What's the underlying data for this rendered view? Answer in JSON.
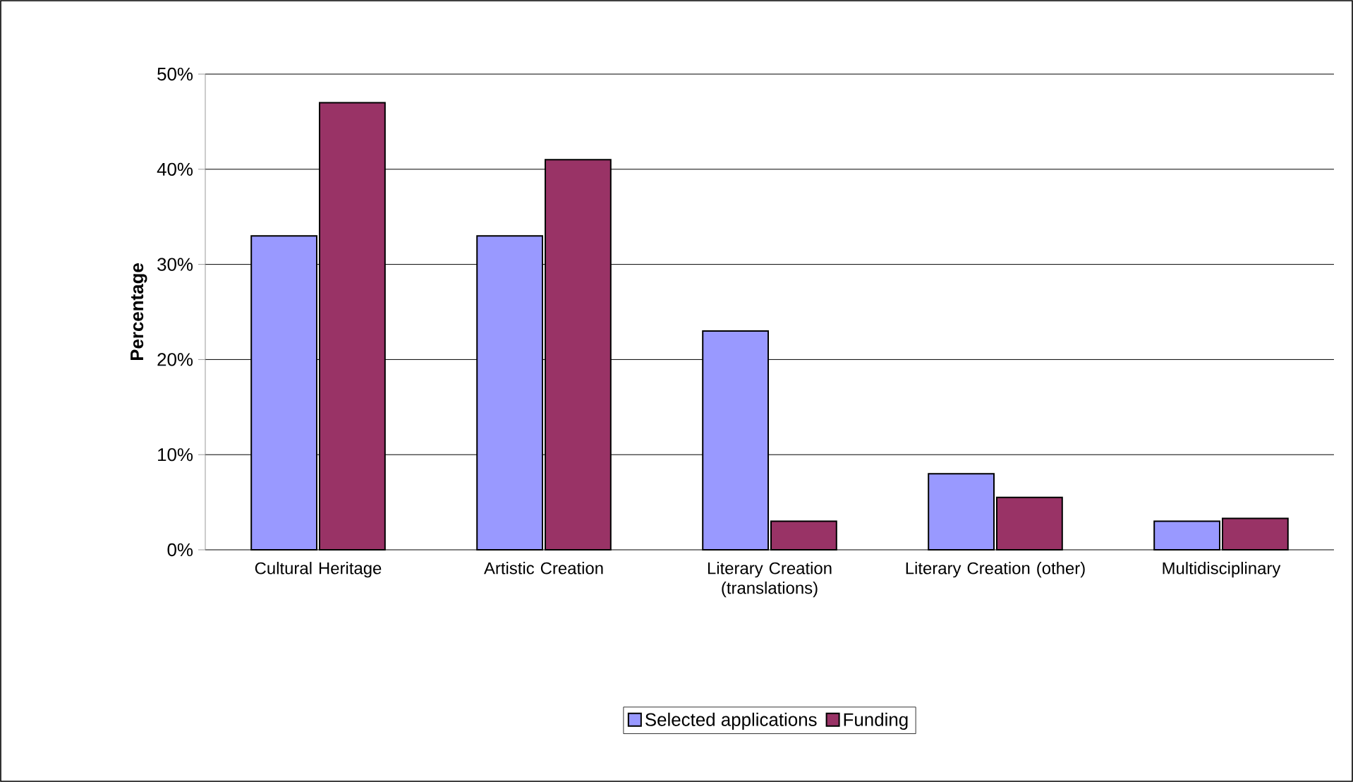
{
  "chart_data": {
    "type": "bar",
    "ylabel": "Percentage",
    "categories": [
      "Cultural Heritage",
      "Artistic Creation",
      "Literary Creation (translations)",
      "Literary Creation (other)",
      "Multidisciplinary"
    ],
    "series": [
      {
        "name": "Selected applications",
        "color": "#9999ff",
        "values": [
          33,
          33,
          23,
          8,
          3
        ]
      },
      {
        "name": "Funding",
        "color": "#993366",
        "values": [
          47,
          41,
          3,
          5.5,
          3.3
        ]
      }
    ],
    "ylim": [
      0,
      50
    ],
    "yticks": [
      {
        "value": 0,
        "label": "0%"
      },
      {
        "value": 10,
        "label": "10%"
      },
      {
        "value": 20,
        "label": "20%"
      },
      {
        "value": 30,
        "label": "30%"
      },
      {
        "value": 40,
        "label": "40%"
      },
      {
        "value": 50,
        "label": "50%"
      }
    ],
    "grid": "y",
    "legend": "bottom"
  }
}
